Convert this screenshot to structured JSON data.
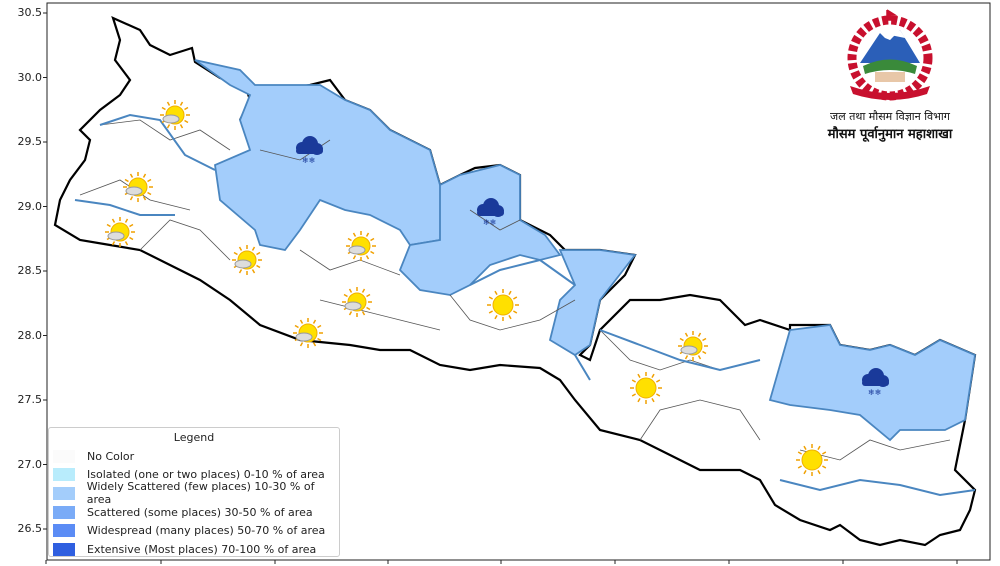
{
  "map": {
    "y_axis_ticks": [
      "30.5",
      "30.0",
      "29.5",
      "29.0",
      "28.5",
      "28.0",
      "27.5",
      "27.0",
      "26.5"
    ],
    "x_axis_tick_labels_visible": false,
    "fill_colors": {
      "no_color": "#fbfbfb",
      "isolated": "#b8ecfc",
      "widely_scattered": "#a3cdfb",
      "scattered": "#7aabf7",
      "widespread": "#5b8cf5",
      "extensive": "#2f5fe0"
    },
    "province_border_color": "#4a86c0",
    "weather_icons": [
      "partly-cloudy",
      "sunny",
      "snow"
    ]
  },
  "legend": {
    "title": "Legend",
    "items": [
      {
        "label": "No Color",
        "color": "#fbfbfb"
      },
      {
        "label": "Isolated (one or two places)  0-10 % of area",
        "color": "#b8ecfc"
      },
      {
        "label": "Widely Scattered (few places)  10-30 % of area",
        "color": "#a3cdfb"
      },
      {
        "label": "Scattered (some places)  30-50 % of area",
        "color": "#7aabf7"
      },
      {
        "label": "Widespread (many places)  50-70 % of area",
        "color": "#5b8cf5"
      },
      {
        "label": "Extensive (Most places)  70-100 % of area",
        "color": "#2f5fe0"
      }
    ]
  },
  "logo": {
    "line1": "जल तथा मौसम विज्ञान विभाग",
    "line2": "मौसम पूर्वानुमान महाशाखा"
  }
}
